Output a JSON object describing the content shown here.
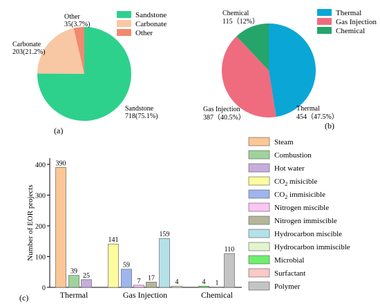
{
  "panels": {
    "a": "(a)",
    "b": "(b)",
    "c": "(c)"
  },
  "chart_data": [
    {
      "type": "pie",
      "panel": "(a)",
      "slices": [
        {
          "name": "Sandstone",
          "value": 718,
          "percent": "75.1%",
          "color": "#2dd18c",
          "label": "718(75.1%)"
        },
        {
          "name": "Carbonate",
          "value": 203,
          "percent": "21.2%",
          "color": "#f8c7a3",
          "label": "203(21.2%)"
        },
        {
          "name": "Other",
          "value": 35,
          "percent": "3.7%",
          "color": "#f08a6e",
          "label": "35(3.7%)"
        }
      ],
      "legend": [
        "Sandstone",
        "Carbonate",
        "Other"
      ],
      "legend_position": "top-right"
    },
    {
      "type": "pie",
      "panel": "(b)",
      "slices": [
        {
          "name": "Thermal",
          "value": 454,
          "percent": "47.5%",
          "color": "#0aa6d6",
          "label": "454（47.5%）"
        },
        {
          "name": "Gas Injection",
          "value": 387,
          "percent": "40.5%",
          "color": "#ef6b7e",
          "label": "387（40.5%）"
        },
        {
          "name": "Chemical",
          "value": 115,
          "percent": "12%",
          "color": "#25a56a",
          "label": "115（12%）"
        }
      ],
      "legend": [
        "Thermal",
        "Gas Injection",
        "Chemical"
      ],
      "legend_position": "top-right"
    },
    {
      "type": "bar",
      "panel": "(c)",
      "ylabel": "Number of EOR projects",
      "ylim": [
        0,
        420
      ],
      "yticks": [
        0,
        100,
        200,
        300,
        400
      ],
      "groups": [
        {
          "name": "Thermal",
          "bars": [
            {
              "series": "Steam",
              "value": 390
            },
            {
              "series": "Combustion",
              "value": 39
            },
            {
              "series": "Hot water",
              "value": 25
            }
          ]
        },
        {
          "name": "Gas Injection",
          "bars": [
            {
              "series": "CO2 misicible",
              "value": 141
            },
            {
              "series": "CO2 immisicible",
              "value": 59
            },
            {
              "series": "Nitrogen miscible",
              "value": 7
            },
            {
              "series": "Nitrogen immiscible",
              "value": 17
            },
            {
              "series": "Hydrocarbon miscible",
              "value": 159
            },
            {
              "series": "Hydrocarbon immiscible",
              "value": 4
            }
          ]
        },
        {
          "name": "Chemical",
          "bars": [
            {
              "series": "Microbial",
              "value": 4
            },
            {
              "series": "Surfactant",
              "value": 1
            },
            {
              "series": "Polymer",
              "value": 110
            }
          ]
        }
      ],
      "series": [
        {
          "name": "Steam",
          "color": "#fbc795"
        },
        {
          "name": "Combustion",
          "color": "#9fd39c"
        },
        {
          "name": "Hot water",
          "color": "#c7aedb"
        },
        {
          "name": "CO2 misicible",
          "color": "#fdfc9d"
        },
        {
          "name": "CO2 immisicible",
          "color": "#9fb5ee"
        },
        {
          "name": "Nitrogen miscible",
          "color": "#fcc5f4"
        },
        {
          "name": "Nitrogen immiscible",
          "color": "#b5b79a"
        },
        {
          "name": "Hydrocarbon miscible",
          "color": "#b4e1e8"
        },
        {
          "name": "Hydrocarbon immiscible",
          "color": "#e3f5cd"
        },
        {
          "name": "Microbial",
          "color": "#6df06d"
        },
        {
          "name": "Surfactant",
          "color": "#fcc8c8"
        },
        {
          "name": "Polymer",
          "color": "#c4c4c4"
        }
      ],
      "legend_position": "right"
    }
  ]
}
